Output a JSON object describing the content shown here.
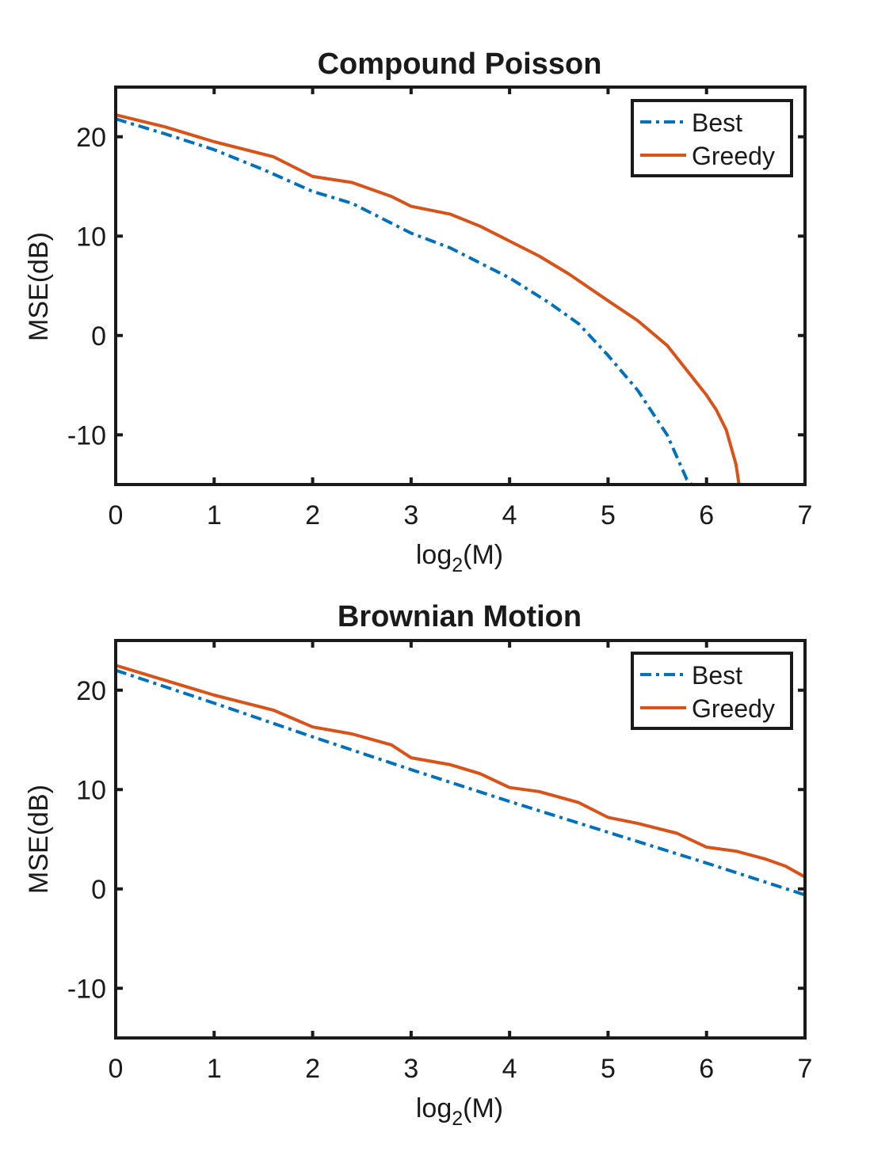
{
  "chart_data": [
    {
      "type": "line",
      "title": "Compound Poisson",
      "xlabel": "log",
      "xlabel_sub": "2",
      "xlabel_suffix": "(M)",
      "ylabel": "MSE(dB)",
      "xlim": [
        0,
        7
      ],
      "ylim": [
        -15,
        25
      ],
      "xticks": [
        "0",
        "1",
        "2",
        "3",
        "4",
        "5",
        "6",
        "7"
      ],
      "yticks": [
        "20",
        "10",
        "0",
        "-10"
      ],
      "legend_position": "top-right",
      "series": [
        {
          "name": "Best",
          "color": "#0072BD",
          "style": "dashdot",
          "x": [
            0,
            0.5,
            1,
            1.5,
            2,
            2.4,
            3,
            3.4,
            4,
            4.4,
            4.7,
            5,
            5.3,
            5.6,
            5.8,
            5.85
          ],
          "y": [
            21.8,
            20.3,
            18.7,
            16.7,
            14.5,
            13.3,
            10.3,
            8.8,
            5.8,
            3.3,
            1.2,
            -2.0,
            -5.5,
            -10.0,
            -14.5,
            -15.0
          ]
        },
        {
          "name": "Greedy",
          "color": "#D95319",
          "style": "solid",
          "x": [
            0,
            0.5,
            1,
            1.6,
            2,
            2.4,
            2.8,
            3,
            3.4,
            3.7,
            4,
            4.3,
            4.6,
            5,
            5.3,
            5.6,
            5.8,
            6,
            6.1,
            6.2,
            6.3,
            6.33
          ],
          "y": [
            22.2,
            21.0,
            19.5,
            18.0,
            16.0,
            15.4,
            14.0,
            13.0,
            12.2,
            11.0,
            9.5,
            8.0,
            6.2,
            3.5,
            1.5,
            -1.0,
            -3.5,
            -6.0,
            -7.5,
            -9.5,
            -13.0,
            -15.0
          ]
        }
      ]
    },
    {
      "type": "line",
      "title": "Brownian Motion",
      "xlabel": "log",
      "xlabel_sub": "2",
      "xlabel_suffix": "(M)",
      "ylabel": "MSE(dB)",
      "xlim": [
        0,
        7
      ],
      "ylim": [
        -15,
        25
      ],
      "xticks": [
        "0",
        "1",
        "2",
        "3",
        "4",
        "5",
        "6",
        "7"
      ],
      "yticks": [
        "20",
        "10",
        "0",
        "-10"
      ],
      "legend_position": "top-right",
      "series": [
        {
          "name": "Best",
          "color": "#0072BD",
          "style": "dashdot",
          "x": [
            0,
            1,
            2,
            3,
            4,
            5,
            6,
            7
          ],
          "y": [
            22.0,
            18.7,
            15.3,
            12.0,
            8.8,
            5.7,
            2.6,
            -0.6
          ]
        },
        {
          "name": "Greedy",
          "color": "#D95319",
          "style": "solid",
          "x": [
            0,
            0.5,
            1,
            1.6,
            2,
            2.4,
            2.8,
            3,
            3.4,
            3.7,
            4,
            4.3,
            4.7,
            5,
            5.3,
            5.7,
            6,
            6.3,
            6.6,
            6.8,
            7
          ],
          "y": [
            22.5,
            21.0,
            19.5,
            18.0,
            16.3,
            15.6,
            14.5,
            13.2,
            12.5,
            11.6,
            10.2,
            9.8,
            8.7,
            7.2,
            6.6,
            5.6,
            4.2,
            3.8,
            3.0,
            2.3,
            1.2
          ]
        }
      ]
    }
  ]
}
